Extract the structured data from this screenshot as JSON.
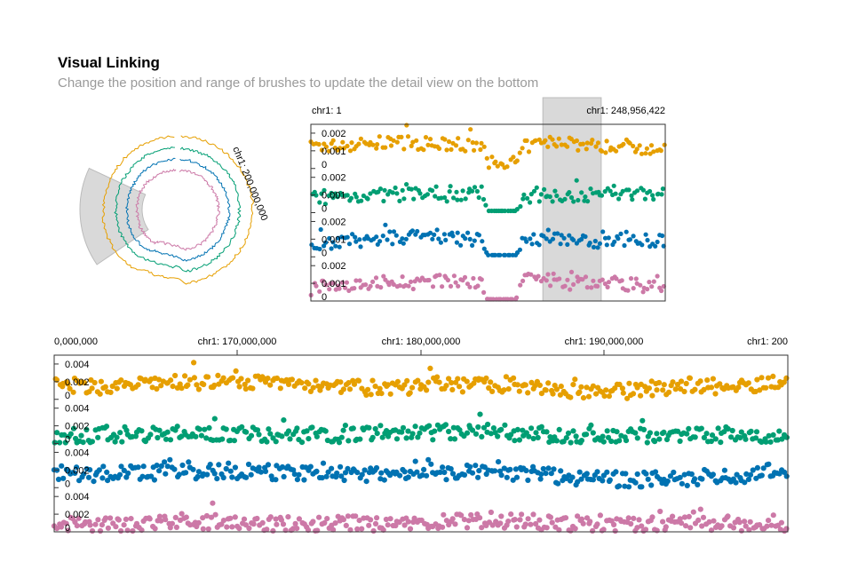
{
  "header": {
    "title": "Visual Linking",
    "subtitle": "Change the position and range of brushes to update the detail view on the bottom"
  },
  "circular_view": {
    "brush_label": "chr1: 200,000,000"
  },
  "overview": {
    "left_label": "chr1: 1",
    "right_label": "chr1: 248,956,422"
  },
  "detail_view": {
    "axis_ticks": [
      "0,000,000",
      "chr1: 170,000,000",
      "chr1: 180,000,000",
      "chr1: 190,000,000",
      "chr1: 200"
    ]
  },
  "colors": {
    "series": [
      "#E69F00",
      "#009E73",
      "#0072B2",
      "#CC79A7"
    ],
    "brush": "#d9d9d9"
  },
  "chart_data": [
    {
      "type": "scatter",
      "name": "overview",
      "x_range": [
        1,
        248956422
      ],
      "brush_range": [
        163000000,
        204000000
      ],
      "tracks": [
        {
          "color": "#E69F00",
          "ylim": [
            0,
            0.0025
          ],
          "tick_labels": [
            "0.002",
            "0.001",
            "0"
          ]
        },
        {
          "color": "#009E73",
          "ylim": [
            0,
            0.0025
          ],
          "tick_labels": [
            "0.002",
            "0.001",
            "0"
          ]
        },
        {
          "color": "#0072B2",
          "ylim": [
            0,
            0.0025
          ],
          "tick_labels": [
            "0.002",
            "0.001",
            "0"
          ]
        },
        {
          "color": "#CC79A7",
          "ylim": [
            0,
            0.0025
          ],
          "tick_labels": [
            "0.002",
            "0.001",
            "0"
          ]
        }
      ],
      "profiles": [
        {
          "x": [
            1,
            20000000,
            40000000,
            60000000,
            80000000,
            100000000,
            120000000,
            124000000,
            126000000,
            140000000,
            144000000,
            150000000,
            160000000,
            170000000,
            180000000,
            190000000,
            200000000,
            210000000,
            220000000,
            230000000,
            248956422
          ],
          "y": [
            0.0012,
            0.0013,
            0.0014,
            0.0015,
            0.0014,
            0.0013,
            0.0013,
            0.0003,
            0.0003,
            0.0003,
            0.0003,
            0.0012,
            0.0014,
            0.0015,
            0.0016,
            0.0013,
            0.0013,
            0.0012,
            0.0013,
            0.0012,
            0.0012
          ]
        },
        {
          "x": [
            1,
            20000000,
            40000000,
            60000000,
            80000000,
            100000000,
            120000000,
            124000000,
            126000000,
            140000000,
            144000000,
            150000000,
            160000000,
            170000000,
            180000000,
            190000000,
            200000000,
            210000000,
            220000000,
            230000000,
            248956422
          ],
          "y": [
            0.0008,
            0.0009,
            0.001,
            0.001,
            0.001,
            0.001,
            0.0011,
            0.0001,
            0.0001,
            0.0001,
            0.0001,
            0.0007,
            0.001,
            0.001,
            0.001,
            0.001,
            0.001,
            0.0011,
            0.001,
            0.0011,
            0.0011
          ]
        },
        {
          "x": [
            1,
            20000000,
            40000000,
            60000000,
            80000000,
            100000000,
            120000000,
            124000000,
            126000000,
            140000000,
            144000000,
            150000000,
            160000000,
            170000000,
            180000000,
            190000000,
            200000000,
            210000000,
            220000000,
            230000000,
            248956422
          ],
          "y": [
            0.0008,
            0.0008,
            0.0009,
            0.0011,
            0.0011,
            0.001,
            0.001,
            0.0001,
            0.0001,
            0.0001,
            0.0001,
            0.0009,
            0.001,
            0.001,
            0.001,
            0.0009,
            0.0009,
            0.0009,
            0.001,
            0.0009,
            0.0009
          ]
        },
        {
          "x": [
            1,
            20000000,
            40000000,
            60000000,
            80000000,
            100000000,
            120000000,
            124000000,
            126000000,
            140000000,
            144000000,
            150000000,
            160000000,
            170000000,
            180000000,
            190000000,
            200000000,
            210000000,
            220000000,
            230000000,
            248956422
          ],
          "y": [
            0.0007,
            0.0009,
            0.001,
            0.0011,
            0.001,
            0.0012,
            0.0009,
            0.0001,
            0.0001,
            0.0001,
            0.0001,
            0.0012,
            0.0011,
            0.0012,
            0.001,
            0.001,
            0.0011,
            0.0011,
            0.001,
            0.0009,
            0.0008
          ]
        }
      ]
    },
    {
      "type": "scatter",
      "name": "detail",
      "x_range": [
        160000000,
        200000000
      ],
      "tracks": [
        {
          "color": "#E69F00",
          "ylim": [
            0,
            0.005
          ],
          "tick_labels": [
            "0.004",
            "0.002",
            "0"
          ]
        },
        {
          "color": "#009E73",
          "ylim": [
            0,
            0.005
          ],
          "tick_labels": [
            "0.004",
            "0.002",
            "0"
          ]
        },
        {
          "color": "#0072B2",
          "ylim": [
            0,
            0.005
          ],
          "tick_labels": [
            "0.004",
            "0.002",
            "0"
          ]
        },
        {
          "color": "#CC79A7",
          "ylim": [
            0,
            0.005
          ],
          "tick_labels": [
            "0.004",
            "0.002",
            "0"
          ]
        }
      ],
      "profiles": [
        {
          "x": [
            160000000,
            163000000,
            167000000,
            170000000,
            173000000,
            176000000,
            178000000,
            181000000,
            185000000,
            188000000,
            191000000,
            193000000,
            195000000,
            197000000,
            199000000,
            200000000
          ],
          "y": [
            0.0016,
            0.0014,
            0.002,
            0.0018,
            0.0018,
            0.0016,
            0.0011,
            0.0017,
            0.0017,
            0.001,
            0.0009,
            0.0013,
            0.0017,
            0.0013,
            0.002,
            0.0015
          ]
        },
        {
          "x": [
            160000000,
            163000000,
            167000000,
            170000000,
            173000000,
            176000000,
            178000000,
            181000000,
            185000000,
            188000000,
            191000000,
            193000000,
            195000000,
            197000000,
            199000000,
            200000000
          ],
          "y": [
            0.0008,
            0.001,
            0.0012,
            0.0011,
            0.001,
            0.001,
            0.0011,
            0.0013,
            0.0012,
            0.0009,
            0.0008,
            0.0009,
            0.0009,
            0.0008,
            0.0007,
            0.0007
          ]
        },
        {
          "x": [
            160000000,
            163000000,
            167000000,
            170000000,
            173000000,
            176000000,
            178000000,
            181000000,
            185000000,
            188000000,
            191000000,
            193000000,
            195000000,
            197000000,
            199000000,
            200000000
          ],
          "y": [
            0.0018,
            0.0015,
            0.0018,
            0.0019,
            0.0017,
            0.0015,
            0.0016,
            0.0017,
            0.0016,
            0.0012,
            0.0008,
            0.001,
            0.001,
            0.0013,
            0.0018,
            0.0013
          ]
        },
        {
          "x": [
            160000000,
            163000000,
            167000000,
            170000000,
            173000000,
            176000000,
            178000000,
            181000000,
            185000000,
            188000000,
            191000000,
            193000000,
            195000000,
            197000000,
            199000000,
            200000000
          ],
          "y": [
            0.0008,
            0.0007,
            0.0012,
            0.001,
            0.0009,
            0.001,
            0.0008,
            0.0011,
            0.0012,
            0.001,
            0.0008,
            0.0008,
            0.001,
            0.0009,
            0.0011,
            0.0007
          ]
        }
      ]
    }
  ]
}
